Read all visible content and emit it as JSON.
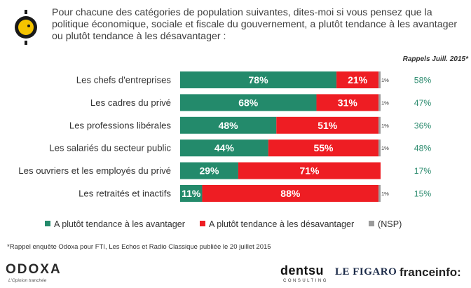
{
  "question": "Pour chacune des catégories de population suivantes, dites-moi si vous pensez que la politique économique, sociale et fiscale du gouvernement, a plutôt tendance à les avantager ou plutôt tendance à les désavantager :",
  "recall_header": "Rappels Juill. 2015*",
  "footnote": "*Rappel enquête Odoxa pour FTI, Les Echos et Radio Classique publiée le 20 juillet 2015",
  "brands": {
    "odoxa": "ODOXA",
    "odoxa_tagline": "L'Opinion tranchée",
    "dentsu": "dentsu",
    "dentsu_sub": "CONSULTING",
    "figaro": "LE FIGARO",
    "franceinfo": "franceinfo:"
  },
  "colors": {
    "avantager": "#238a6b",
    "desavantager": "#ee1d23",
    "nsp": "#9b9b9b",
    "recall": "#2a8a6d"
  },
  "chart_data": {
    "type": "bar",
    "orientation": "horizontal",
    "stacked": true,
    "categories": [
      "Les chefs d'entreprises",
      "Les cadres du privé",
      "Les professions libérales",
      "Les salariés du secteur public",
      "Les ouvriers et les employés du privé",
      "Les retraités et inactifs"
    ],
    "series": [
      {
        "name": "A plutôt tendance à les avantager",
        "values": [
          78,
          68,
          48,
          44,
          29,
          11
        ],
        "labels": [
          "78%",
          "68%",
          "48%",
          "44%",
          "29%",
          "11%"
        ]
      },
      {
        "name": "A plutôt tendance à les désavantager",
        "values": [
          21,
          31,
          51,
          55,
          71,
          88
        ],
        "labels": [
          "21%",
          "31%",
          "51%",
          "55%",
          "71%",
          "88%"
        ]
      },
      {
        "name": "(NSP)",
        "values": [
          1,
          1,
          1,
          1,
          0,
          1
        ],
        "labels": [
          "1%",
          "1%",
          "1%",
          "1%",
          "",
          "1%"
        ]
      }
    ],
    "recall_values": [
      "58%",
      "47%",
      "36%",
      "48%",
      "17%",
      "15%"
    ],
    "xlim": [
      0,
      100
    ],
    "legend_position": "bottom"
  }
}
